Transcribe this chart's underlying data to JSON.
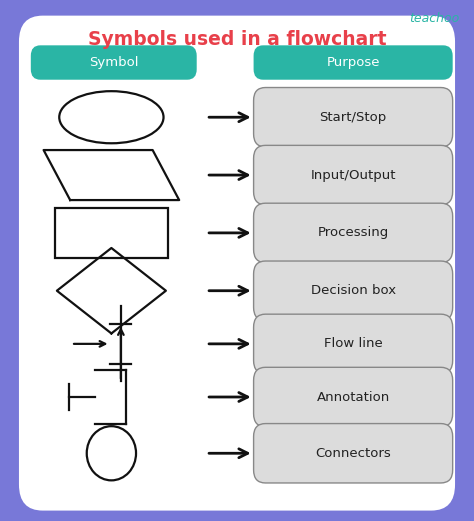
{
  "title": "Symbols used in a flowchart",
  "teachoo_text": "teachoo",
  "bg_outer": "#7878d8",
  "bg_inner": "#ffffff",
  "header_color": "#2ab5a5",
  "header_text_color": "#ffffff",
  "title_color": "#e8404a",
  "teachoo_color": "#2ab5a5",
  "symbol_col_label": "Symbol",
  "purpose_col_label": "Purpose",
  "arrow_color": "#111111",
  "shape_color": "#111111",
  "purpose_bg": "#dcdcdc",
  "purpose_border": "#888888",
  "purpose_text_color": "#222222",
  "rows": [
    {
      "purpose": "Start/Stop"
    },
    {
      "purpose": "Input/Output"
    },
    {
      "purpose": "Processing"
    },
    {
      "purpose": "Decision box"
    },
    {
      "purpose": "Flow line"
    },
    {
      "purpose": "Annotation"
    },
    {
      "purpose": "Connectors"
    }
  ]
}
